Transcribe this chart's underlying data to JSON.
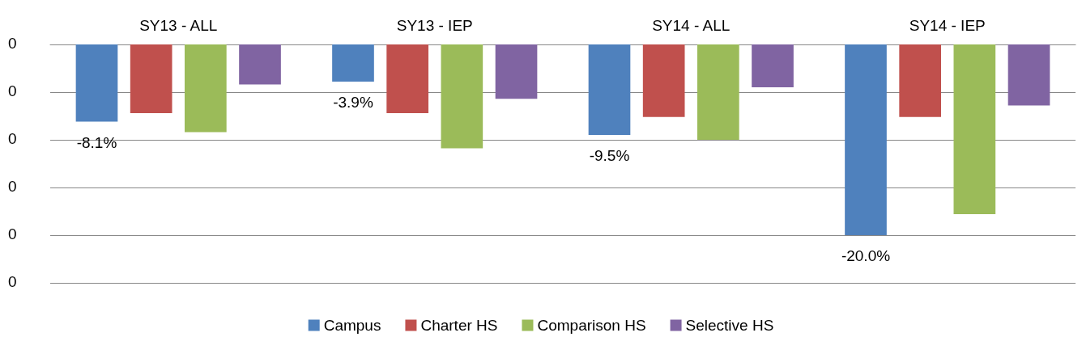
{
  "chart_data": {
    "type": "bar",
    "categories": [
      "SY13 - ALL",
      "SY13 - IEP",
      "SY14 - ALL",
      "SY14 - IEP"
    ],
    "ylim": [
      -25,
      0
    ],
    "series": [
      {
        "name": "Campus",
        "color": "#4f81bd",
        "values": [
          -8.1,
          -3.9,
          -9.5,
          -20.0
        ],
        "value_labels": [
          "-8.1%",
          "-3.9%",
          "-9.5%",
          "-20.0%"
        ]
      },
      {
        "name": "Charter HS",
        "color": "#c0504d",
        "values": [
          -7.2,
          -7.2,
          -7.6,
          -7.6
        ]
      },
      {
        "name": "Comparison HS",
        "color": "#9bbb59",
        "values": [
          -9.2,
          -10.9,
          -10.0,
          -17.8
        ]
      },
      {
        "name": "Selective HS",
        "color": "#8064a2",
        "values": [
          -4.2,
          -5.7,
          -4.5,
          -6.4
        ]
      }
    ],
    "annotations": [
      "0",
      "0",
      "0",
      "0",
      "0",
      "0"
    ],
    "grid": "y",
    "legend": "bottom"
  }
}
